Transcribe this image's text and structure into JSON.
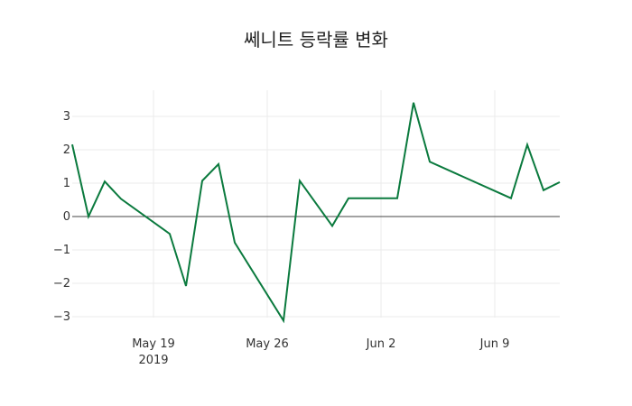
{
  "chart_data": {
    "type": "line",
    "title": "쎄니트 등락률 변화",
    "xlabel": "",
    "ylabel": "",
    "ylim": [
      -3.5,
      3.8
    ],
    "grid": true,
    "legend": false,
    "line_color": "#0b7a3e",
    "x_ticks": [
      "May 19\n2019",
      "May 26",
      "Jun 2",
      "Jun 9"
    ],
    "y_ticks": [
      -3,
      -2,
      -1,
      0,
      1,
      2,
      3
    ],
    "x": [
      "2019-05-14",
      "2019-05-15",
      "2019-05-16",
      "2019-05-17",
      "2019-05-20",
      "2019-05-21",
      "2019-05-22",
      "2019-05-23",
      "2019-05-24",
      "2019-05-27",
      "2019-05-28",
      "2019-05-30",
      "2019-05-31",
      "2019-06-03",
      "2019-06-04",
      "2019-06-05",
      "2019-06-10",
      "2019-06-11",
      "2019-06-12",
      "2019-06-13"
    ],
    "series": [
      {
        "name": "등락률",
        "values": [
          2.16,
          0.0,
          1.05,
          0.53,
          -0.52,
          -2.08,
          1.07,
          1.57,
          -0.78,
          -3.12,
          1.07,
          -0.28,
          0.55,
          0.55,
          3.41,
          1.64,
          0.55,
          2.15,
          0.79,
          1.03
        ]
      }
    ]
  },
  "labels": {
    "title": "쎄니트 등락률 변화",
    "x_tick_0": "May 19",
    "x_tick_0_year": "2019",
    "x_tick_1": "May 26",
    "x_tick_2": "Jun 2",
    "x_tick_3": "Jun 9",
    "y_tick_3": "3",
    "y_tick_2": "2",
    "y_tick_1": "1",
    "y_tick_0": "0",
    "y_tick_m1": "−1",
    "y_tick_m2": "−2",
    "y_tick_m3": "−3"
  }
}
